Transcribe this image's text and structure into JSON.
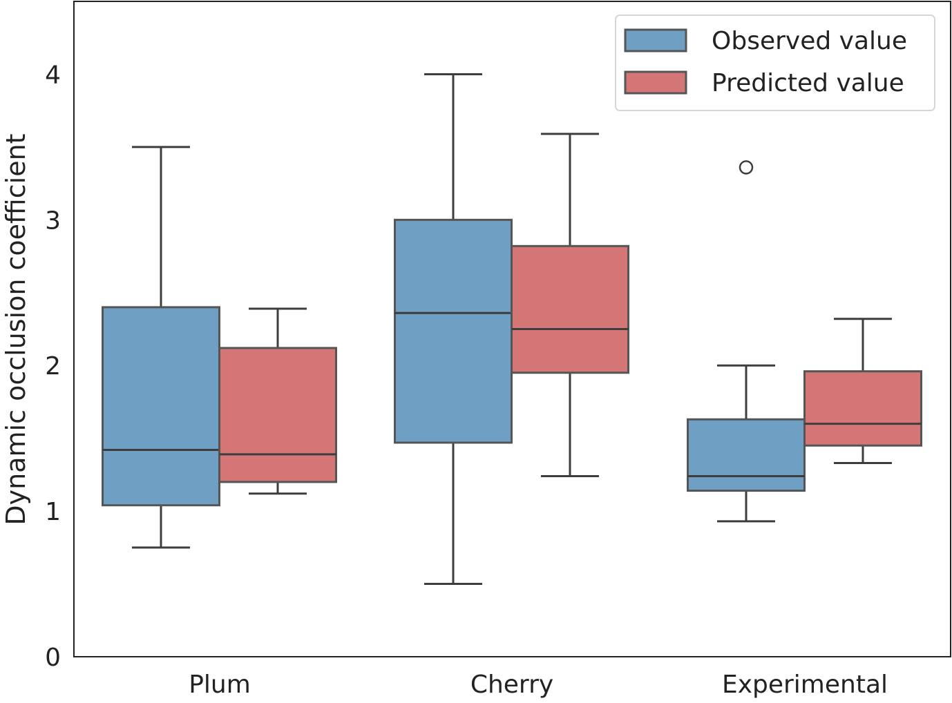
{
  "chart_data": {
    "type": "box",
    "title": "",
    "xlabel": "",
    "ylabel": "Dynamic occlusion coefficient",
    "ylim": [
      0,
      4.5
    ],
    "yticks": [
      "0",
      "1",
      "2",
      "3",
      "4"
    ],
    "grid": false,
    "legend_position": "top-right",
    "categories": [
      "Plum",
      "Cherry",
      "Experimental"
    ],
    "series": [
      {
        "name": "Observed value",
        "color": "#6f9fc3",
        "boxes": [
          {
            "category": "Plum",
            "whislo": 0.75,
            "q1": 1.04,
            "med": 1.42,
            "q3": 2.4,
            "whishi": 3.5,
            "fliers": []
          },
          {
            "category": "Cherry",
            "whislo": 0.5,
            "q1": 1.47,
            "med": 2.36,
            "q3": 3.0,
            "whishi": 4.0,
            "fliers": []
          },
          {
            "category": "Experimental",
            "whislo": 0.93,
            "q1": 1.14,
            "med": 1.24,
            "q3": 1.63,
            "whishi": 2.0,
            "fliers": [
              3.36
            ]
          }
        ]
      },
      {
        "name": "Predicted value",
        "color": "#d47675",
        "boxes": [
          {
            "category": "Plum",
            "whislo": 1.12,
            "q1": 1.2,
            "med": 1.39,
            "q3": 2.12,
            "whishi": 2.39,
            "fliers": []
          },
          {
            "category": "Cherry",
            "whislo": 1.24,
            "q1": 1.95,
            "med": 2.25,
            "q3": 2.82,
            "whishi": 3.59,
            "fliers": []
          },
          {
            "category": "Experimental",
            "whislo": 1.33,
            "q1": 1.45,
            "med": 1.6,
            "q3": 1.96,
            "whishi": 2.32,
            "fliers": []
          }
        ]
      }
    ]
  }
}
